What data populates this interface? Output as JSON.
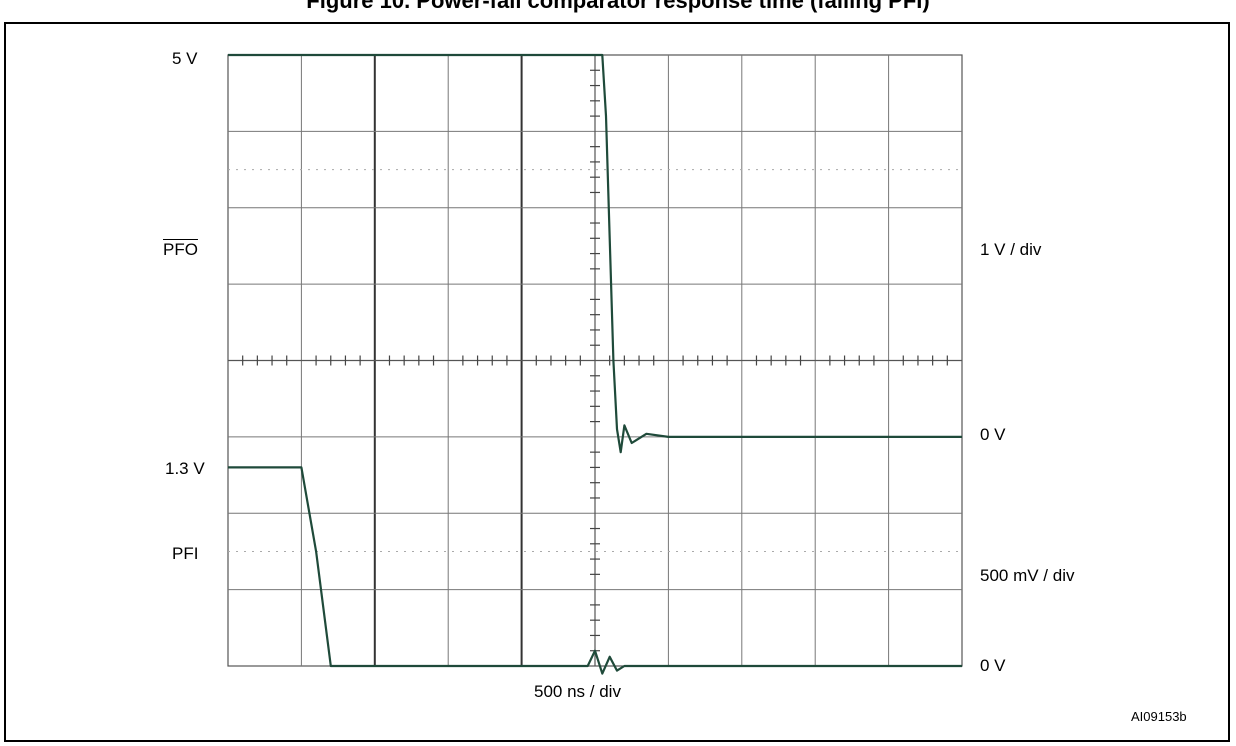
{
  "figure": {
    "title": "Figure 10. Power-fail comparator response time (falling PFI)",
    "figure_code": "AI09153b"
  },
  "chart_data": {
    "type": "line",
    "divisions": {
      "x": 10,
      "y": 8
    },
    "xlabel": "500 ns / div",
    "grid": true,
    "series": [
      {
        "name": "PFO",
        "scale_label": "1 V / div",
        "top_label": "5 V",
        "zero_label": "0 V",
        "x": [
          0,
          1.0,
          2.0,
          3.0,
          4.0,
          4.8,
          5.0,
          5.1,
          5.15,
          5.2,
          5.25,
          5.3,
          5.35,
          5.4,
          5.5,
          5.7,
          6.0,
          7.0,
          8.0,
          9.0,
          10.0
        ],
        "y": [
          5.0,
          5.0,
          5.0,
          5.0,
          5.0,
          5.0,
          5.0,
          5.0,
          4.2,
          2.6,
          1.0,
          0.1,
          -0.2,
          0.15,
          -0.08,
          0.04,
          0.0,
          0.0,
          0.0,
          0.0,
          0.0
        ]
      },
      {
        "name": "PFI",
        "scale_label": "500 mV / div",
        "top_label": "1.3 V",
        "zero_label": "0 V",
        "x": [
          0,
          0.5,
          1.0,
          1.2,
          1.4,
          1.6,
          2.0,
          3.0,
          4.0,
          4.9,
          5.0,
          5.1,
          5.2,
          5.3,
          5.4,
          6.0,
          7.0,
          8.0,
          9.0,
          10.0
        ],
        "y": [
          1.3,
          1.3,
          1.3,
          0.75,
          0.0,
          0.0,
          0.0,
          0.0,
          0.0,
          0.0,
          0.1,
          -0.05,
          0.06,
          -0.03,
          0.0,
          0.0,
          0.0,
          0.0,
          0.0,
          0.0
        ]
      }
    ]
  }
}
